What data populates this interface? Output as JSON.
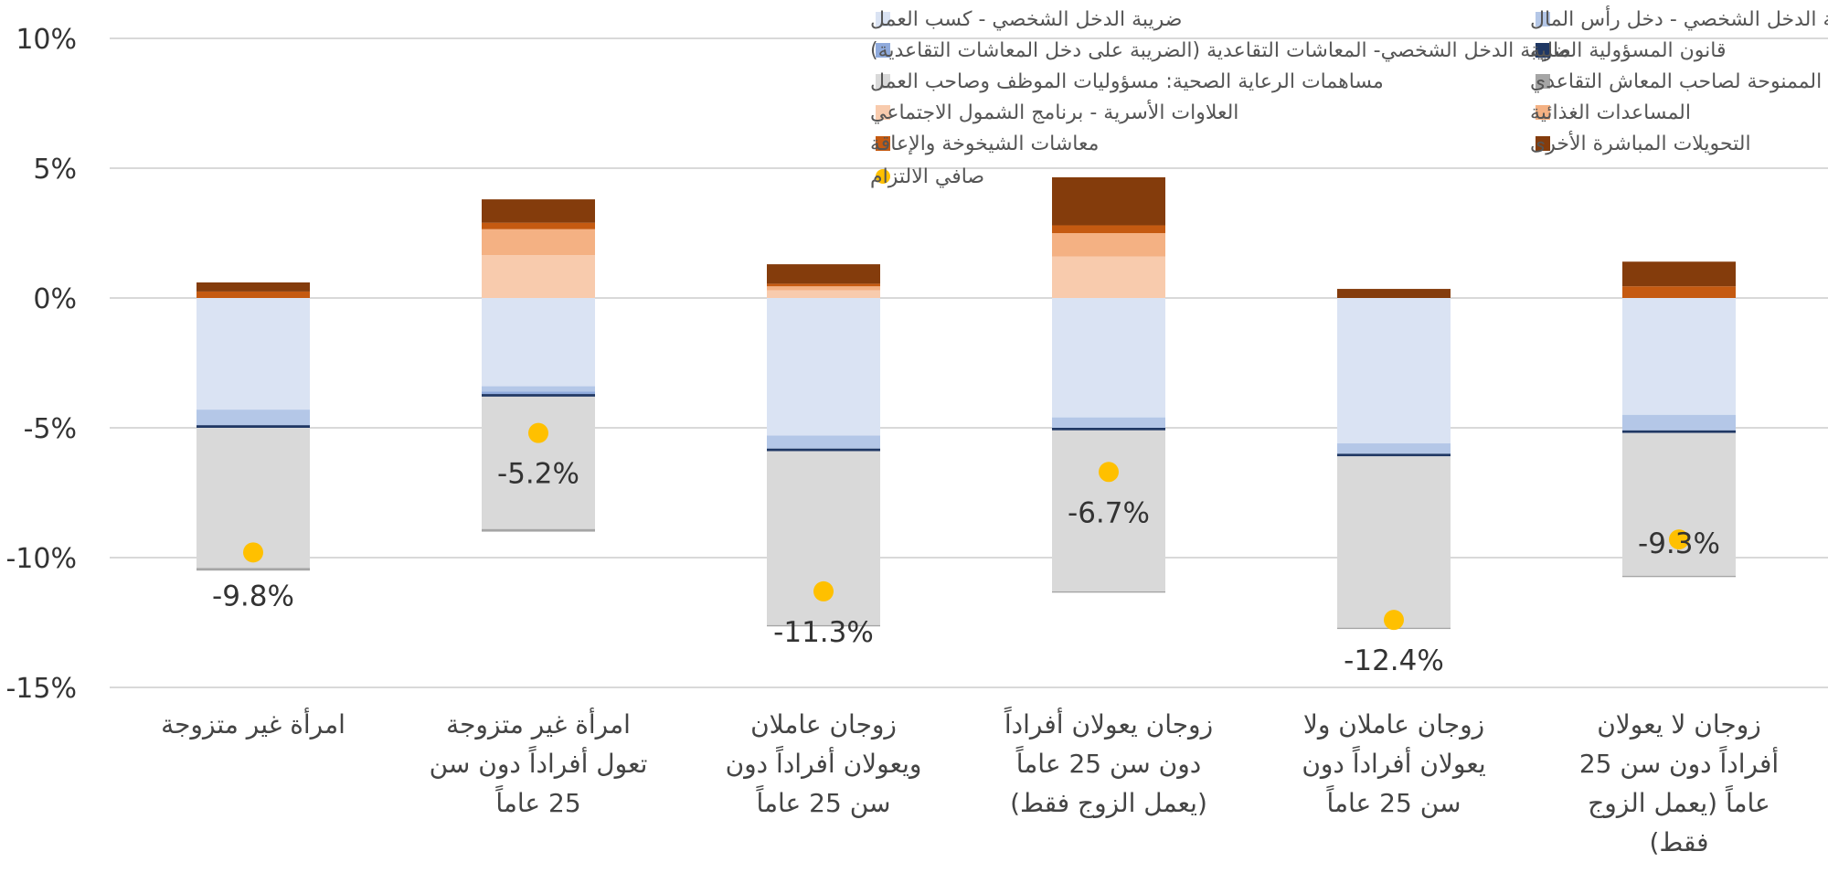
{
  "chart_data": {
    "type": "stacked-bar",
    "ylim": [
      -15,
      10
    ],
    "yticks": [
      10,
      5,
      0,
      -5,
      -10,
      -15
    ],
    "ytick_labels": [
      "10%",
      "5%",
      "0%",
      "-5%",
      "-10%",
      "-15%"
    ],
    "categories": [
      [
        "امرأة غير متزوجة"
      ],
      [
        "امرأة غير متزوجة",
        "تعول أفراداً دون سن",
        "25 عاماً"
      ],
      [
        "زوجان عاملان",
        "ويعولان أفراداً دون",
        "سن 25 عاماً"
      ],
      [
        "زوجان يعولان أفراداً",
        "دون سن 25 عاماً",
        "(يعمل الزوج فقط)"
      ],
      [
        "زوجان عاملان ولا",
        "يعولان أفراداً دون",
        "سن 25 عاماً"
      ],
      [
        "زوجان لا يعولان",
        "أفراداً دون سن 25",
        "عاماً (يعمل الزوج",
        "فقط)"
      ]
    ],
    "series": [
      {
        "name": "ضريبة الدخل الشخصي - كسب العمل",
        "color": "#dae3f3",
        "values": [
          -4.3,
          -3.4,
          -5.3,
          -4.6,
          -5.6,
          -4.5
        ]
      },
      {
        "name": "ضريبة الدخل الشخصي - دخل رأس المال",
        "color": "#b4c7e7",
        "values": [
          -0.6,
          -0.2,
          -0.5,
          -0.4,
          -0.4,
          -0.6
        ]
      },
      {
        "name": "ضريبة الدخل الشخصي- المعاشات التقاعدية (الضريبة على دخل المعاشات التقاعدية)",
        "color": "#8faadc",
        "values": [
          0,
          -0.1,
          0,
          0,
          0,
          0
        ]
      },
      {
        "name": "قانون المسؤولية المالية",
        "color": "#203864",
        "values": [
          -0.1,
          -0.1,
          -0.1,
          -0.1,
          -0.1,
          -0.1
        ]
      },
      {
        "name": "مساهمات الرعاية الصحية: مسؤوليات الموظف وصاحب العمل",
        "color": "#d9d9d9",
        "values": [
          -5.4,
          -5.1,
          -6.7,
          -6.2,
          -6.6,
          -5.5
        ]
      },
      {
        "name": "مساهمات الرعاية الصحية الممنوحة لصاحب المعاش التقاعدي",
        "color": "#a5a5a5",
        "values": [
          -0.1,
          -0.1,
          -0.05,
          -0.05,
          -0.05,
          -0.05
        ]
      },
      {
        "name": "العلاوات الأسرية - برنامج الشمول الاجتماعي",
        "color": "#f8cbad",
        "values": [
          0,
          1.65,
          0.3,
          1.6,
          0,
          0
        ]
      },
      {
        "name": "المساعدات الغذائية",
        "color": "#f4b183",
        "values": [
          0,
          1.0,
          0.15,
          0.9,
          0,
          0
        ]
      },
      {
        "name": "معاشات الشيخوخة والإعاقة",
        "color": "#c55a11",
        "values": [
          0.25,
          0.25,
          0.1,
          0.3,
          0,
          0.45
        ]
      },
      {
        "name": "التحويلات المباشرة الأخرى",
        "color": "#843c0c",
        "values": [
          0.35,
          0.9,
          0.75,
          1.85,
          0.35,
          0.95
        ]
      }
    ],
    "net": {
      "name": "صافي الالتزام",
      "color": "#ffc000",
      "values": [
        -9.8,
        -5.2,
        -11.3,
        -6.7,
        -12.4,
        -9.3
      ],
      "labels": [
        "-9.8%",
        "-5.2%",
        "-11.3%",
        "-6.7%",
        "-12.4%",
        "-9.3%"
      ]
    },
    "legend_left_column": [
      "ضريبة الدخل الشخصي - كسب العمل",
      "ضريبة الدخل الشخصي- المعاشات التقاعدية (الضريبة على دخل المعاشات التقاعدية)",
      "مساهمات الرعاية الصحية: مسؤوليات الموظف وصاحب العمل",
      "العلاوات الأسرية - برنامج الشمول الاجتماعي",
      "معاشات الشيخوخة والإعاقة",
      "صافي الالتزام"
    ],
    "legend_right_column": [
      "ضريبة الدخل الشخصي - دخل رأس المال",
      "قانون المسؤولية المالية",
      "مساهمات الرعاية الصحية الممنوحة لصاحب المعاش التقاعدي",
      "المساعدات الغذائية",
      "التحويلات المباشرة الأخرى"
    ],
    "gridlines": true
  }
}
